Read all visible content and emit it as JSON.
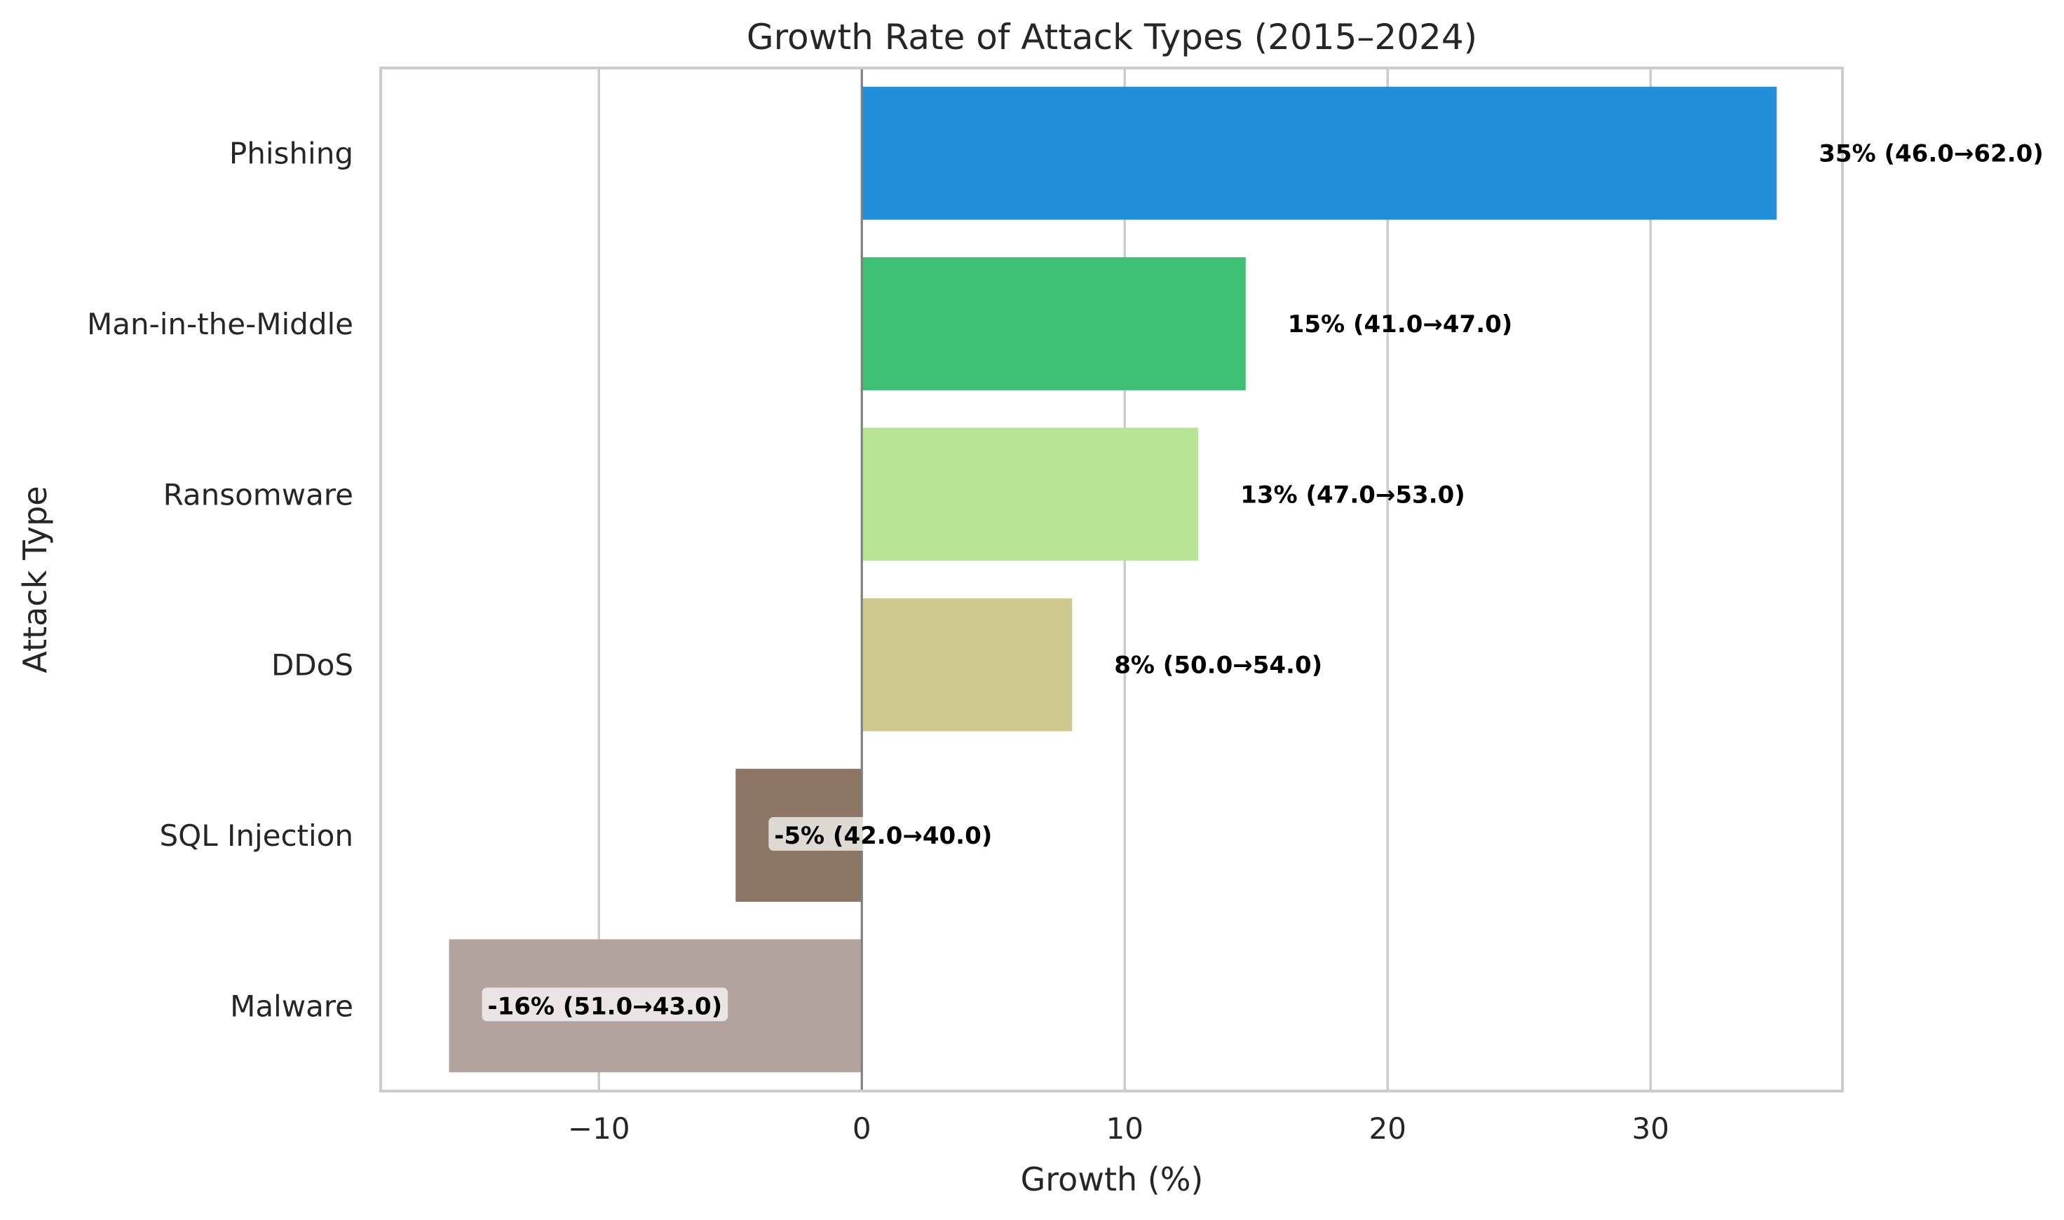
{
  "chart_data": {
    "type": "bar",
    "orientation": "horizontal",
    "title": "Growth Rate of Attack Types (2015–2024)",
    "xlabel": "Growth (%)",
    "ylabel": "Attack Type",
    "xlim": [
      -18.3,
      37.3
    ],
    "x_ticks": [
      -10,
      0,
      10,
      20,
      30
    ],
    "x_tick_labels": [
      "−10",
      "0",
      "10",
      "20",
      "30"
    ],
    "grid": "vertical",
    "categories": [
      "Phishing",
      "Man-in-the-Middle",
      "Ransomware",
      "DDoS",
      "SQL Injection",
      "Malware"
    ],
    "values": [
      34.8,
      14.6,
      12.8,
      8.0,
      -4.8,
      -15.7
    ],
    "data_labels": [
      "35% (46.0→62.0)",
      "15% (41.0→47.0)",
      "13% (47.0→53.0)",
      "8% (50.0→54.0)",
      "-5% (42.0→40.0)",
      "-16% (51.0→43.0)"
    ],
    "colors": [
      "#228fda",
      "#3dbf74",
      "#b8e495",
      "#cfc98f",
      "#8e7665",
      "#b3a39f"
    ],
    "label_boxed": [
      false,
      false,
      false,
      false,
      true,
      true
    ]
  }
}
